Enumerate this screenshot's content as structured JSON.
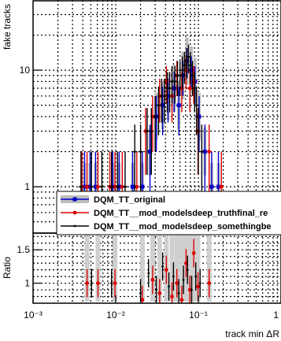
{
  "chart_data": [
    {
      "panel": "main",
      "type": "scatter",
      "ylabel": "fake tracks",
      "x_scale": "log",
      "y_scale": "log",
      "xlim": [
        0.001,
        1
      ],
      "ylim": [
        0.4,
        40
      ],
      "y_tick_labels": [
        {
          "value": 1,
          "label": "1"
        },
        {
          "value": 10,
          "label": "10"
        }
      ],
      "grid": true,
      "legend_position": "center-right",
      "series": [
        {
          "name": "DQM_TT_original",
          "color": "#0000cc",
          "marker": "square",
          "x": [
            0.0042,
            0.0049,
            0.0057,
            0.0092,
            0.011,
            0.016,
            0.021,
            0.026,
            0.031,
            0.037,
            0.043,
            0.051,
            0.058,
            0.065,
            0.073,
            0.082,
            0.091,
            0.102,
            0.12,
            0.145,
            0.175
          ],
          "y": [
            1.0,
            1.0,
            1.0,
            1.0,
            1.0,
            1.0,
            1.0,
            2.0,
            4.0,
            5.0,
            6.0,
            7.0,
            5.0,
            9.0,
            12.0,
            10.0,
            8.0,
            4.0,
            2.0,
            1.0,
            1.0
          ]
        },
        {
          "name": "DQM_TT__mod_modelsdeep_truthfinal_re",
          "color": "#dd0000",
          "marker": "circle",
          "x": [
            0.0039,
            0.0045,
            0.0061,
            0.0085,
            0.0098,
            0.012,
            0.018,
            0.023,
            0.028,
            0.034,
            0.041,
            0.048,
            0.055,
            0.063,
            0.071,
            0.079,
            0.088,
            0.099,
            0.135,
            0.19
          ],
          "y": [
            1.0,
            1.0,
            1.0,
            1.0,
            1.0,
            1.0,
            1.0,
            3.0,
            4.0,
            6.0,
            8.0,
            6.0,
            9.0,
            7.0,
            10.0,
            7.0,
            8.0,
            3.0,
            2.0,
            1.0
          ]
        },
        {
          "name": "DQM_TT__mod_modelsdeep_somethingbe",
          "color": "#000000",
          "marker": "dot",
          "x": [
            0.0038,
            0.0051,
            0.0068,
            0.0089,
            0.0105,
            0.013,
            0.017,
            0.02,
            0.024,
            0.027,
            0.03,
            0.033,
            0.036,
            0.039,
            0.042,
            0.045,
            0.048,
            0.052,
            0.056,
            0.06,
            0.064,
            0.068,
            0.072,
            0.076,
            0.08,
            0.085,
            0.09,
            0.095,
            0.1,
            0.11
          ],
          "y": [
            1.0,
            1.0,
            1.0,
            1.0,
            1.0,
            1.0,
            2.0,
            2.0,
            3.0,
            3.0,
            4.0,
            5.0,
            6.0,
            6.0,
            7.0,
            7.0,
            8.0,
            8.0,
            9.0,
            9.0,
            10.0,
            11.0,
            12.0,
            13.0,
            11.0,
            9.0,
            7.0,
            5.0,
            3.0,
            2.0
          ]
        }
      ]
    },
    {
      "panel": "ratio",
      "type": "scatter",
      "xlabel": "track min ΔR",
      "ylabel": "Ratio",
      "x_scale": "log",
      "xlim": [
        0.001,
        1
      ],
      "ylim": [
        0.7,
        1.75
      ],
      "x_tick_labels": [
        {
          "value": 0.001,
          "label": "10⁻³"
        },
        {
          "value": 0.01,
          "label": "10⁻²"
        },
        {
          "value": 0.1,
          "label": "10⁻¹"
        },
        {
          "value": 1,
          "label": "1"
        }
      ],
      "y_tick_labels": [
        {
          "value": 1,
          "label": "1"
        },
        {
          "value": 1.5,
          "label": "1.5"
        }
      ],
      "grid": true,
      "series": [
        {
          "color": "#dd0000",
          "marker": "circle",
          "x": [
            0.0045,
            0.0061,
            0.0098,
            0.021,
            0.028,
            0.034,
            0.041,
            0.048,
            0.055,
            0.063,
            0.071,
            0.079,
            0.088,
            0.099,
            0.135
          ],
          "y": [
            1.0,
            1.0,
            1.0,
            0.75,
            1.05,
            0.85,
            1.2,
            0.8,
            1.0,
            0.75,
            1.3,
            0.9,
            1.45,
            0.95,
            1.0
          ]
        },
        {
          "color": "#000000",
          "marker": "dot",
          "x": [
            0.0051,
            0.0089,
            0.02,
            0.025,
            0.031,
            0.037,
            0.044,
            0.05,
            0.058,
            0.066,
            0.074,
            0.083,
            0.093,
            0.105
          ],
          "y": [
            1.0,
            1.0,
            0.85,
            1.15,
            0.9,
            1.25,
            0.95,
            1.1,
            0.85,
            1.05,
            1.2,
            0.9,
            1.1,
            1.0
          ]
        }
      ]
    }
  ]
}
